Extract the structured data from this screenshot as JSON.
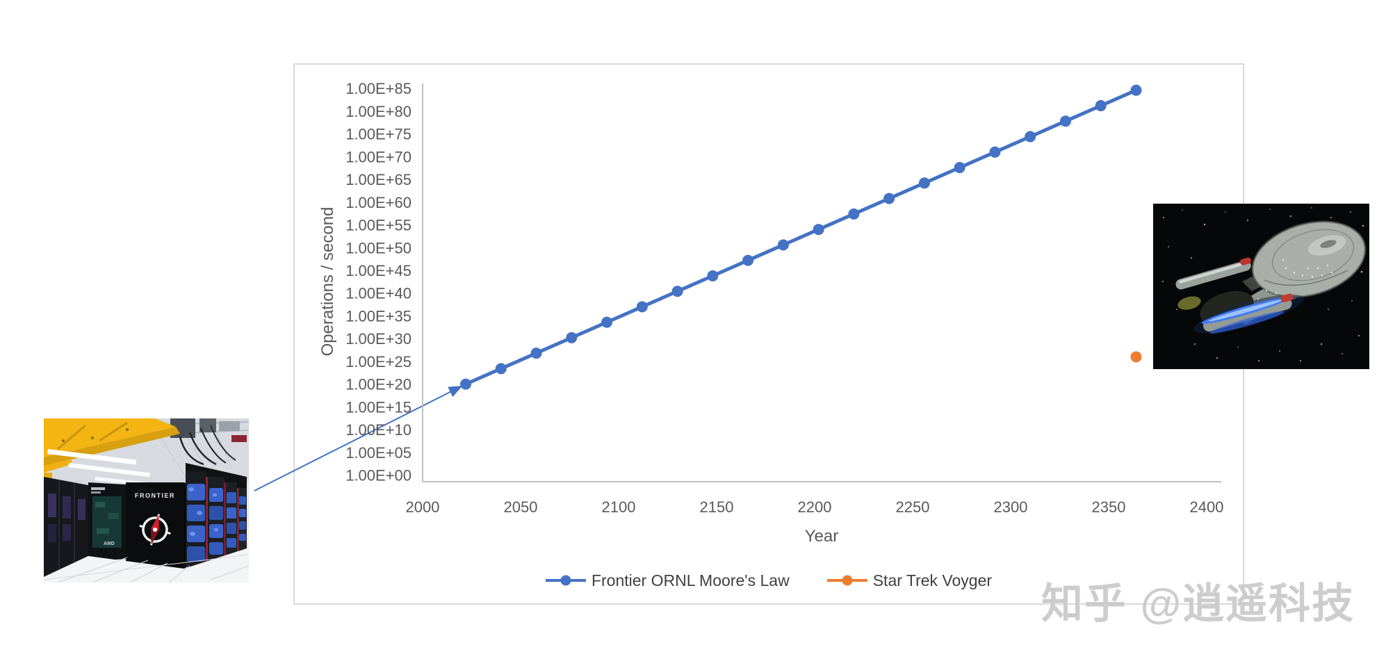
{
  "watermark": {
    "text": "知乎 @逍遥科技"
  },
  "images": {
    "frontier": {
      "name": "frontier-supercomputer-photo",
      "labels": [
        "FRONTIER",
        "AMD"
      ]
    },
    "voyager": {
      "name": "star-trek-voyager-photo"
    }
  },
  "chart_data": {
    "type": "line",
    "title": "",
    "xlabel": "Year",
    "ylabel": "Operations / second",
    "x_ticks": [
      2000,
      2050,
      2100,
      2150,
      2200,
      2250,
      2300,
      2350,
      2400
    ],
    "y_tick_labels": [
      "1.00E+00",
      "1.00E+05",
      "1.00E+10",
      "1.00E+15",
      "1.00E+20",
      "1.00E+25",
      "1.00E+30",
      "1.00E+35",
      "1.00E+40",
      "1.00E+45",
      "1.00E+50",
      "1.00E+55",
      "1.00E+60",
      "1.00E+65",
      "1.00E+70",
      "1.00E+75",
      "1.00E+80",
      "1.00E+85"
    ],
    "y_scale": "log10",
    "y_tick_exponent_step": 5,
    "xlim": [
      2000,
      2400
    ],
    "ylim_exponents": [
      0,
      85
    ],
    "grid": false,
    "legend_position": "bottom-center",
    "series": [
      {
        "name": "Frontier ORNL Moore's Law",
        "color": "#4472C4",
        "marker": "circle",
        "line": true,
        "points": [
          {
            "year": 2022,
            "ops_exponent": 20.0
          },
          {
            "year": 2040,
            "ops_exponent": 23.4
          },
          {
            "year": 2058,
            "ops_exponent": 26.8
          },
          {
            "year": 2076,
            "ops_exponent": 30.2
          },
          {
            "year": 2094,
            "ops_exponent": 33.6
          },
          {
            "year": 2112,
            "ops_exponent": 37.0
          },
          {
            "year": 2130,
            "ops_exponent": 40.4
          },
          {
            "year": 2148,
            "ops_exponent": 43.8
          },
          {
            "year": 2166,
            "ops_exponent": 47.2
          },
          {
            "year": 2184,
            "ops_exponent": 50.6
          },
          {
            "year": 2202,
            "ops_exponent": 54.0
          },
          {
            "year": 2220,
            "ops_exponent": 57.4
          },
          {
            "year": 2238,
            "ops_exponent": 60.8
          },
          {
            "year": 2256,
            "ops_exponent": 64.2
          },
          {
            "year": 2274,
            "ops_exponent": 67.6
          },
          {
            "year": 2292,
            "ops_exponent": 71.0
          },
          {
            "year": 2310,
            "ops_exponent": 74.4
          },
          {
            "year": 2328,
            "ops_exponent": 77.8
          },
          {
            "year": 2346,
            "ops_exponent": 81.2
          },
          {
            "year": 2364,
            "ops_exponent": 84.6
          }
        ]
      },
      {
        "name": "Star Trek Voyger",
        "color": "#ED7D31",
        "marker": "circle",
        "line": false,
        "points": [
          {
            "year": 2364,
            "ops_exponent": 26.0
          }
        ]
      }
    ],
    "annotations": [
      {
        "type": "image-callout",
        "name": "frontier-supercomputer-photo",
        "arrow_points_to": {
          "year": 2022,
          "ops_exponent": 20.0
        }
      },
      {
        "type": "image",
        "name": "star-trek-voyager-photo"
      }
    ]
  }
}
